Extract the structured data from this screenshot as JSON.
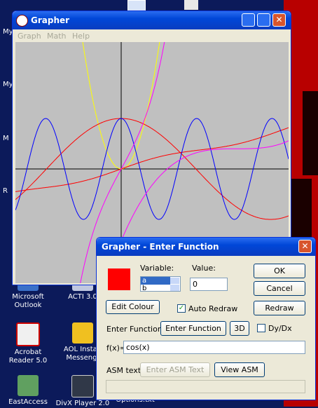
{
  "desktop": {
    "edge_labels": [
      "My",
      "My",
      "M",
      "R"
    ],
    "icons": [
      {
        "lines": [
          "Microsoft",
          "Outlook"
        ]
      },
      {
        "lines": [
          "ACTI 3.0"
        ]
      },
      {
        "lines": [
          "Acrobat",
          "Reader 5.0"
        ]
      },
      {
        "lines": [
          "AOL Instan",
          "Messeng."
        ]
      },
      {
        "lines": [
          "EastAccess"
        ]
      },
      {
        "lines": [
          "DivX Player 2.0"
        ]
      },
      {
        "lines": [
          "Options.txt"
        ]
      }
    ]
  },
  "grapher": {
    "title": "Grapher",
    "menu": [
      "Graph",
      "Math",
      "Help"
    ]
  },
  "dialog": {
    "title": "Grapher - Enter Function",
    "variable_label": "Variable:",
    "variables": [
      "a",
      "b"
    ],
    "value_label": "Value:",
    "value": "0",
    "ok": "OK",
    "cancel": "Cancel",
    "redraw": "Redraw",
    "edit_colour": "Edit Colour",
    "auto_redraw": "Auto Redraw",
    "enter_function_label": "Enter Function:",
    "enter_function": "Enter Function",
    "three_d": "3D",
    "dydx": "Dy/Dx",
    "fx_label": "f(x)=",
    "fx": "cos(x)",
    "asm_label": "ASM text:",
    "enter_asm": "Enter ASM Text",
    "view_asm": "View ASM"
  }
}
